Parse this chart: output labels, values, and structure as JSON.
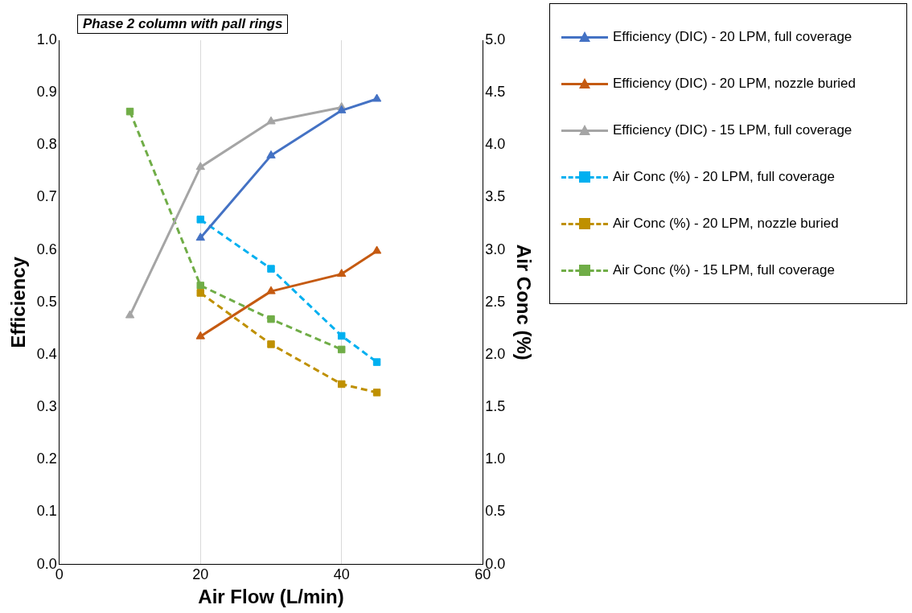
{
  "chart_data": {
    "type": "line",
    "title": "Phase 2 column with pall rings",
    "xlabel": "Air Flow (L/min)",
    "ylabel": "Efficiency",
    "y2label": "Air Conc (%)",
    "xlim": [
      0,
      60
    ],
    "xticks": [
      0,
      20,
      40,
      60
    ],
    "ylim": [
      0,
      1
    ],
    "yticks": [
      {
        "value": 0,
        "label": "0.0"
      },
      {
        "value": 0.1,
        "label": "0.1"
      },
      {
        "value": 0.2,
        "label": "0.2"
      },
      {
        "value": 0.3,
        "label": "0.3"
      },
      {
        "value": 0.4,
        "label": "0.4"
      },
      {
        "value": 0.5,
        "label": "0.5"
      },
      {
        "value": 0.6,
        "label": "0.6"
      },
      {
        "value": 0.7,
        "label": "0.7"
      },
      {
        "value": 0.8,
        "label": "0.8"
      },
      {
        "value": 0.9,
        "label": "0.9"
      },
      {
        "value": 1,
        "label": "1.0"
      }
    ],
    "y2lim": [
      0,
      5
    ],
    "y2ticks": [
      {
        "value": 0,
        "label": "0.0"
      },
      {
        "value": 0.5,
        "label": "0.5"
      },
      {
        "value": 1,
        "label": "1.0"
      },
      {
        "value": 1.5,
        "label": "1.5"
      },
      {
        "value": 2,
        "label": "2.0"
      },
      {
        "value": 2.5,
        "label": "2.5"
      },
      {
        "value": 3,
        "label": "3.0"
      },
      {
        "value": 3.5,
        "label": "3.5"
      },
      {
        "value": 4,
        "label": "4.0"
      },
      {
        "value": 4.5,
        "label": "4.5"
      },
      {
        "value": 5,
        "label": "5.0"
      }
    ],
    "grid": "x",
    "legend": "right",
    "series": [
      {
        "name": "Efficiency (DIC) - 20 LPM, full coverage",
        "color": "#4472c4",
        "x": [
          20,
          30,
          40,
          45
        ],
        "values": [
          0.623,
          0.78,
          0.866,
          0.888
        ],
        "marker": "triangle",
        "line_style": "solid"
      },
      {
        "name": "Efficiency (DIC) - 20 LPM, nozzle buried",
        "color": "#c55a11",
        "x": [
          20,
          30,
          40,
          45
        ],
        "values": [
          0.435,
          0.521,
          0.554,
          0.598
        ],
        "marker": "triangle",
        "line_style": "solid"
      },
      {
        "name": "Efficiency (DIC) - 15 LPM, full coverage",
        "color": "#a5a5a5",
        "x": [
          10,
          20,
          30,
          40
        ],
        "values": [
          0.475,
          0.758,
          0.845,
          0.872
        ],
        "marker": "triangle",
        "line_style": "solid"
      },
      {
        "name": "Air Conc (%) - 20 LPM, full coverage",
        "color": "#00b0f0",
        "x": [
          20,
          30,
          40,
          45
        ],
        "values": [
          3.29,
          2.82,
          2.18,
          1.93
        ],
        "axis": "y2",
        "marker": "square",
        "line_style": "dashed"
      },
      {
        "name": "Air Conc (%) - 20 LPM, nozzle buried",
        "color": "#bf9000",
        "x": [
          20,
          30,
          40,
          45
        ],
        "values": [
          2.59,
          2.1,
          1.72,
          1.64
        ],
        "axis": "y2",
        "marker": "square",
        "line_style": "dashed"
      },
      {
        "name": "Air Conc (%) - 15 LPM, full coverage",
        "color": "#70ad47",
        "x": [
          10,
          20,
          30,
          40
        ],
        "values": [
          4.32,
          2.66,
          2.34,
          2.05
        ],
        "axis": "y2",
        "marker": "square",
        "line_style": "dashed"
      }
    ]
  }
}
